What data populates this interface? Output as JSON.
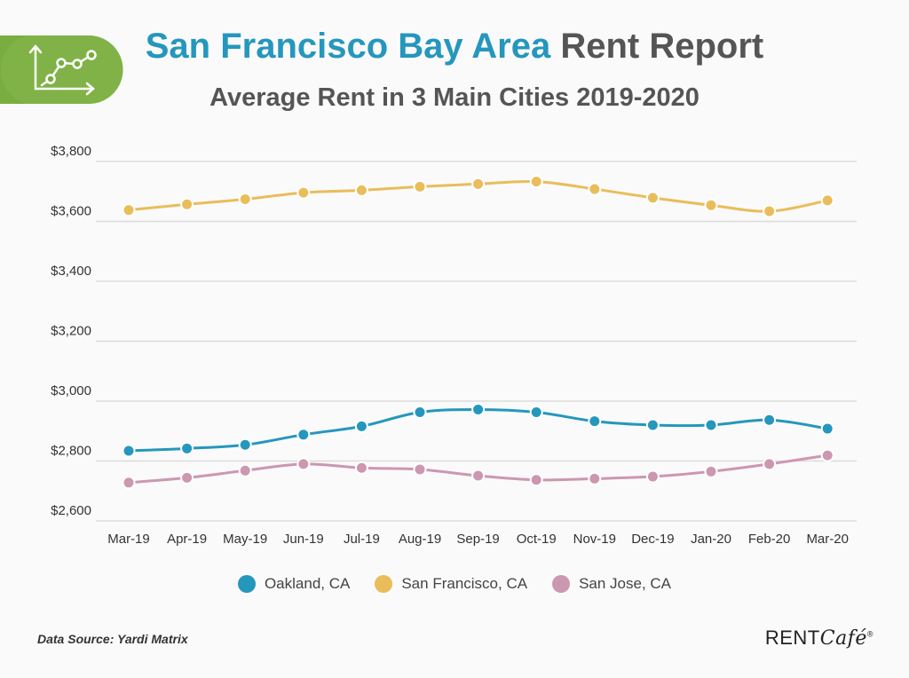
{
  "header": {
    "title_accent": "San Francisco Bay Area",
    "title_rest": " Rent Report",
    "subtitle": "Average Rent in 3 Main Cities 2019-2020"
  },
  "footer": {
    "source": "Data Source: Yardi Matrix",
    "brand_main": "RENT",
    "brand_italic": "Café",
    "brand_mark": "®"
  },
  "chart_data": {
    "type": "line",
    "title": "Average Rent in 3 Main Cities 2019-2020",
    "xlabel": "",
    "ylabel": "",
    "categories": [
      "Mar-19",
      "Apr-19",
      "May-19",
      "Jun-19",
      "Jul-19",
      "Aug-19",
      "Sep-19",
      "Oct-19",
      "Nov-19",
      "Dec-19",
      "Jan-20",
      "Feb-20",
      "Mar-20"
    ],
    "ylim": [
      2600,
      3800
    ],
    "yticks": [
      2600,
      2800,
      3000,
      3200,
      3400,
      3600,
      3800
    ],
    "ytick_labels": [
      "$2,600",
      "$2,800",
      "$3,000",
      "$3,200",
      "$3,400",
      "$3,600",
      "$3,800"
    ],
    "grid": true,
    "legend_position": "bottom",
    "series": [
      {
        "name": "Oakland, CA",
        "color": "#2597bd",
        "values": [
          2834,
          2842,
          2854,
          2888,
          2916,
          2963,
          2972,
          2963,
          2933,
          2920,
          2920,
          2937,
          2908
        ]
      },
      {
        "name": "San Francisco, CA",
        "color": "#e9bd5a",
        "values": [
          3638,
          3657,
          3674,
          3696,
          3704,
          3716,
          3725,
          3733,
          3708,
          3679,
          3654,
          3634,
          3670
        ]
      },
      {
        "name": "San Jose, CA",
        "color": "#cc97b0",
        "values": [
          2728,
          2744,
          2768,
          2790,
          2777,
          2772,
          2751,
          2737,
          2741,
          2748,
          2765,
          2790,
          2819
        ]
      }
    ]
  },
  "icons": {
    "badge": "line-chart-icon"
  },
  "colors": {
    "badge": "#79ad3f",
    "accent": "#2597bd"
  }
}
